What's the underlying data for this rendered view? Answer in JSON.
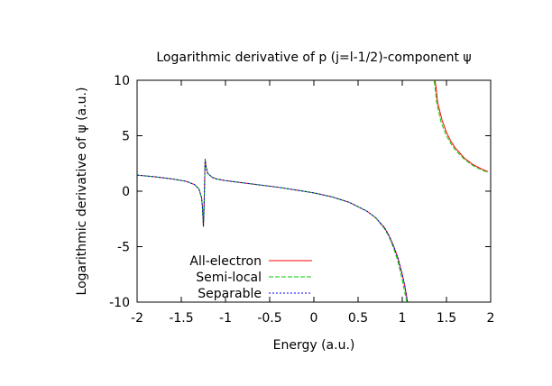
{
  "chart_data": {
    "type": "line",
    "title": "Logarithmic derivative of p (j=l-1/2)-component ψ",
    "xlabel": "Energy (a.u.)",
    "ylabel": "Logarithmic derivative of ψ (a.u.)",
    "xlim": [
      -2,
      2
    ],
    "ylim": [
      -10,
      10
    ],
    "xticks": [
      -2,
      -1.5,
      -1,
      -0.5,
      0,
      0.5,
      1,
      1.5,
      2
    ],
    "yticks": [
      -10,
      -5,
      0,
      5,
      10
    ],
    "xtick_labels": [
      "-2",
      "-1.5",
      "-1",
      "-0.5",
      "0",
      "0.5",
      "1",
      "1.5",
      "2"
    ],
    "ytick_labels": [
      "-10",
      "-5",
      "0",
      "5",
      "10"
    ],
    "grid": false,
    "legend_position": "bottom-left",
    "series": [
      {
        "name": "All-electron",
        "color": "#ff0000",
        "dash": "solid",
        "x": [
          -2.0,
          -1.8,
          -1.6,
          -1.45,
          -1.35,
          -1.3,
          -1.27,
          -1.26,
          -1.255,
          -1.25,
          -1.245,
          -1.24,
          -1.23,
          -1.22,
          -1.2,
          -1.15,
          -1.1,
          -1.0,
          -0.8,
          -0.6,
          -0.4,
          -0.2,
          0.0,
          0.2,
          0.4,
          0.6,
          0.7,
          0.8,
          0.85,
          0.9,
          0.95,
          1.0,
          1.03,
          1.06,
          1.08,
          null,
          1.36,
          1.38,
          1.4,
          1.45,
          1.5,
          1.55,
          1.6,
          1.7,
          1.8,
          1.9,
          1.97
        ],
        "y": [
          1.45,
          1.3,
          1.1,
          0.9,
          0.6,
          0.2,
          -0.6,
          -1.5,
          -2.3,
          -3.2,
          -2.2,
          -0.5,
          2.9,
          2.2,
          1.6,
          1.25,
          1.1,
          0.95,
          0.75,
          0.55,
          0.35,
          0.1,
          -0.15,
          -0.5,
          -1.0,
          -1.8,
          -2.4,
          -3.3,
          -4.0,
          -4.9,
          -6.0,
          -7.5,
          -8.6,
          -10.0,
          -10.5,
          null,
          10.5,
          9.5,
          8.0,
          6.4,
          5.3,
          4.5,
          3.9,
          3.0,
          2.4,
          2.0,
          1.75
        ]
      },
      {
        "name": "Semi-local",
        "color": "#00cc00",
        "dash": "dashed",
        "x": [
          -2.0,
          -1.8,
          -1.6,
          -1.45,
          -1.35,
          -1.3,
          -1.27,
          -1.26,
          -1.255,
          -1.25,
          -1.245,
          -1.24,
          -1.23,
          -1.22,
          -1.2,
          -1.15,
          -1.1,
          -1.0,
          -0.8,
          -0.6,
          -0.4,
          -0.2,
          0.0,
          0.2,
          0.4,
          0.6,
          0.7,
          0.8,
          0.85,
          0.9,
          0.95,
          1.0,
          1.03,
          1.05,
          1.07,
          null,
          1.35,
          1.37,
          1.39,
          1.44,
          1.5,
          1.55,
          1.6,
          1.7,
          1.8,
          1.9,
          1.97
        ],
        "y": [
          1.45,
          1.3,
          1.1,
          0.9,
          0.6,
          0.2,
          -0.6,
          -1.5,
          -2.3,
          -3.2,
          -2.2,
          -0.5,
          2.9,
          2.2,
          1.6,
          1.25,
          1.1,
          0.95,
          0.75,
          0.55,
          0.35,
          0.1,
          -0.15,
          -0.5,
          -1.0,
          -1.8,
          -2.4,
          -3.4,
          -4.1,
          -5.1,
          -6.3,
          -8.0,
          -9.2,
          -10.0,
          -10.5,
          null,
          10.5,
          9.4,
          7.9,
          6.2,
          5.0,
          4.3,
          3.7,
          2.9,
          2.3,
          1.9,
          1.7
        ]
      },
      {
        "name": "Separable",
        "color": "#0000ff",
        "dash": "dotted",
        "x": [
          -2.0,
          -1.8,
          -1.6,
          -1.45,
          -1.35,
          -1.3,
          -1.27,
          -1.26,
          -1.255,
          -1.25,
          -1.245,
          -1.24,
          -1.23,
          -1.22,
          -1.2,
          -1.15,
          -1.1,
          -1.0,
          -0.8,
          -0.6,
          -0.4,
          -0.2,
          0.0,
          0.2,
          0.4,
          0.6,
          0.7,
          0.8,
          0.85,
          0.9,
          0.95,
          1.0,
          1.03,
          1.06,
          1.08
        ],
        "y": [
          1.45,
          1.3,
          1.1,
          0.9,
          0.6,
          0.2,
          -0.6,
          -1.5,
          -2.3,
          -3.2,
          -2.2,
          -0.5,
          2.9,
          2.2,
          1.6,
          1.25,
          1.1,
          0.95,
          0.75,
          0.55,
          0.35,
          0.1,
          -0.15,
          -0.5,
          -1.0,
          -1.8,
          -2.4,
          -3.3,
          -4.0,
          -4.9,
          -6.0,
          -7.5,
          -8.6,
          -10.0,
          -10.5
        ]
      }
    ]
  }
}
